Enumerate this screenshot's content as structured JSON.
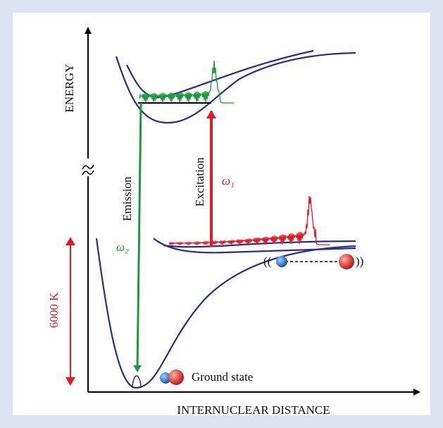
{
  "labels": {
    "y_axis": "ENERGY",
    "x_axis": "INTERNUCLEAR DISTANCE",
    "emission": "Emission",
    "excitation": "Excitation",
    "omega_1": "ω₁",
    "omega_2": "ω₂",
    "temperature": "6000 K",
    "ground_state": "Ground state",
    "bracket_open": "((",
    "bracket_close": "))"
  }
}
